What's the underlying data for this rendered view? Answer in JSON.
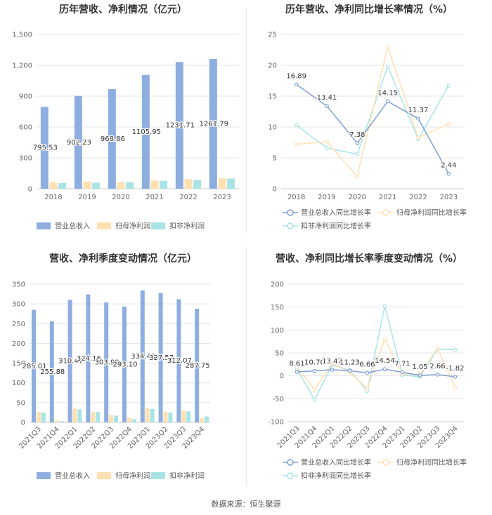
{
  "colors": {
    "revenue": "#8eaee0",
    "net_profit": "#ffe0b0",
    "deducted_profit": "#a8e4e6",
    "grid": "#e4e4e4",
    "axis_text": "#666666",
    "title": "#333333"
  },
  "source": "数据来源：恒生聚源",
  "chart_data": [
    {
      "type": "bar",
      "title": "历年营收、净利情况（亿元）",
      "categories": [
        "2018",
        "2019",
        "2020",
        "2021",
        "2022",
        "2023"
      ],
      "ylim": [
        0,
        1500
      ],
      "yticks": [
        0,
        300,
        600,
        900,
        1200,
        1500
      ],
      "ytick_labels": [
        "0",
        "300",
        "600",
        "900",
        "1,200",
        "1,500"
      ],
      "grid": true,
      "legend_position": "bottom",
      "series": [
        {
          "name": "营业总收入",
          "values": [
            795.53,
            902.23,
            968.86,
            1105.95,
            1231.71,
            1261.79
          ],
          "data_labels": [
            "795.53",
            "902.23",
            "968.86",
            "1105.95",
            "1231.71",
            "1261.79"
          ]
        },
        {
          "name": "归母净利润",
          "values": [
            63,
            70,
            65,
            79,
            93,
            103
          ]
        },
        {
          "name": "扣非净利润",
          "values": [
            56,
            60,
            63,
            76,
            86,
            99
          ]
        }
      ]
    },
    {
      "type": "line",
      "title": "历年营收、净利同比增长率情况（%）",
      "categories": [
        "2018",
        "2019",
        "2020",
        "2021",
        "2022",
        "2023"
      ],
      "ylim": [
        0,
        25
      ],
      "yticks": [
        0,
        5,
        10,
        15,
        20,
        25
      ],
      "ytick_labels": [
        "0",
        "5",
        "10",
        "15",
        "20",
        "25"
      ],
      "grid": true,
      "legend_position": "bottom",
      "series": [
        {
          "name": "营业总收入同比增长率",
          "values": [
            16.89,
            13.41,
            7.38,
            14.15,
            11.37,
            2.44
          ],
          "data_labels": [
            "16.89",
            "13.41",
            "7.38",
            "14.15",
            "11.37",
            "2.44"
          ]
        },
        {
          "name": "归母净利润同比增长率",
          "values": [
            7.2,
            7.6,
            2.0,
            23.0,
            8.3,
            10.5
          ]
        },
        {
          "name": "扣非净利润同比增长率",
          "values": [
            10.3,
            6.6,
            5.6,
            19.8,
            8.0,
            16.7
          ]
        }
      ]
    },
    {
      "type": "bar",
      "title": "营收、净利季度变动情况（亿元）",
      "categories": [
        "2021Q3",
        "2021Q4",
        "2022Q1",
        "2022Q2",
        "2022Q3",
        "2022Q4",
        "2023Q1",
        "2023Q2",
        "2023Q3",
        "2023Q4"
      ],
      "ylim": [
        0,
        350
      ],
      "yticks": [
        0,
        50,
        100,
        150,
        200,
        250,
        300,
        350
      ],
      "ytick_labels": [
        "0",
        "50",
        "100",
        "150",
        "200",
        "250",
        "300",
        "350"
      ],
      "grid": true,
      "legend_position": "bottom",
      "series": [
        {
          "name": "营业总收入",
          "values": [
            285.01,
            255.88,
            310.47,
            324.16,
            303.99,
            293.1,
            334.43,
            327.57,
            312.07,
            287.75
          ],
          "data_labels": [
            "285.01",
            "255.88",
            "310.47",
            "324.16",
            "303.99",
            "293.10",
            "334.43",
            "327.57",
            "312.07",
            "287.75"
          ]
        },
        {
          "name": "归母净利润",
          "values": [
            26,
            5,
            35,
            27,
            19,
            12,
            36,
            27,
            30,
            10
          ]
        },
        {
          "name": "扣非净利润",
          "values": [
            25,
            3,
            33,
            26,
            17,
            8,
            34,
            25,
            28,
            15
          ]
        }
      ]
    },
    {
      "type": "line",
      "title": "营收、净利同比增长率季度变动情况（%）",
      "categories": [
        "2021Q3",
        "2021Q4",
        "2022Q1",
        "2022Q2",
        "2022Q3",
        "2022Q4",
        "2023Q1",
        "2023Q2",
        "2023Q3",
        "2023Q4"
      ],
      "ylim": [
        -100,
        200
      ],
      "yticks": [
        -100,
        -50,
        0,
        50,
        100,
        150,
        200
      ],
      "ytick_labels": [
        "-100",
        "-50",
        "0",
        "50",
        "100",
        "150",
        "200"
      ],
      "grid": true,
      "legend_position": "bottom",
      "series": [
        {
          "name": "营业总收入同比增长率",
          "values": [
            8.61,
            10.7,
            13.47,
            11.23,
            6.66,
            14.54,
            7.71,
            1.05,
            2.66,
            -1.82
          ],
          "data_labels": [
            "8.61",
            "10.70",
            "13.47",
            "11.23",
            "6.66",
            "14.54",
            "7.71",
            "1.05",
            "2.66",
            "-1.82"
          ]
        },
        {
          "name": "归母净利润同比增长率",
          "values": [
            20,
            -30,
            27,
            8,
            -28,
            80,
            4,
            3,
            60,
            -25
          ]
        },
        {
          "name": "扣非净利润同比增长率",
          "values": [
            15,
            -52,
            24,
            12,
            -33,
            152,
            2,
            -2,
            58,
            57
          ]
        }
      ]
    }
  ]
}
